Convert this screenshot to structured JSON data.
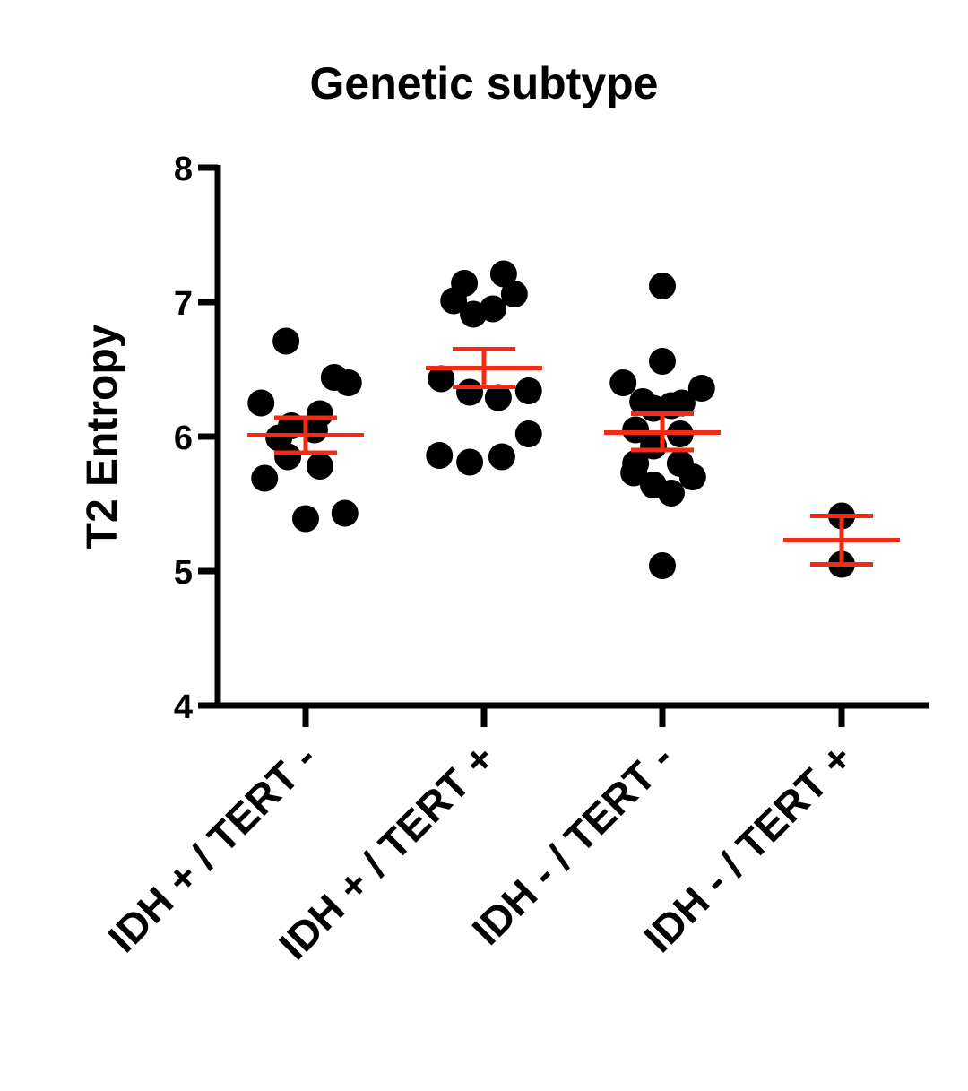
{
  "chart_data": {
    "type": "scatter",
    "title": "Genetic subtype",
    "ylabel": "T2 Entropy",
    "xlabel": "",
    "ylim": [
      4,
      8
    ],
    "yticks": [
      4,
      5,
      6,
      7,
      8
    ],
    "grid": false,
    "legend": "none",
    "colors": {
      "points": "#000000",
      "mean_sem": "#f42a12",
      "axis": "#000000"
    },
    "categories": [
      "IDH + / TERT -",
      "IDH + / TERT +",
      "IDH - / TERT -",
      "IDH - / TERT +"
    ],
    "groups": [
      {
        "category": "IDH + / TERT -",
        "mean": 6.01,
        "sem_low": 5.88,
        "sem_high": 6.14,
        "points": [
          {
            "x": -0.11,
            "y": 6.71
          },
          {
            "x": 0.16,
            "y": 6.44
          },
          {
            "x": 0.24,
            "y": 6.4
          },
          {
            "x": -0.25,
            "y": 6.25
          },
          {
            "x": 0.08,
            "y": 6.17
          },
          {
            "x": -0.08,
            "y": 6.08
          },
          {
            "x": 0.05,
            "y": 6.05
          },
          {
            "x": -0.15,
            "y": 5.99
          },
          {
            "x": -0.1,
            "y": 5.85
          },
          {
            "x": 0.08,
            "y": 5.78
          },
          {
            "x": -0.23,
            "y": 5.69
          },
          {
            "x": 0.22,
            "y": 5.43
          },
          {
            "x": 0.0,
            "y": 5.39
          }
        ]
      },
      {
        "category": "IDH + / TERT +",
        "mean": 6.51,
        "sem_low": 6.37,
        "sem_high": 6.65,
        "points": [
          {
            "x": 0.11,
            "y": 7.21
          },
          {
            "x": -0.11,
            "y": 7.14
          },
          {
            "x": 0.17,
            "y": 7.06
          },
          {
            "x": -0.17,
            "y": 7.01
          },
          {
            "x": 0.05,
            "y": 6.95
          },
          {
            "x": -0.06,
            "y": 6.91
          },
          {
            "x": -0.24,
            "y": 6.43
          },
          {
            "x": 0.25,
            "y": 6.34
          },
          {
            "x": -0.08,
            "y": 6.33
          },
          {
            "x": 0.08,
            "y": 6.29
          },
          {
            "x": 0.25,
            "y": 6.02
          },
          {
            "x": -0.25,
            "y": 5.86
          },
          {
            "x": 0.1,
            "y": 5.85
          },
          {
            "x": -0.08,
            "y": 5.81
          }
        ]
      },
      {
        "category": "IDH - / TERT -",
        "mean": 6.03,
        "sem_low": 5.9,
        "sem_high": 6.17,
        "points": [
          {
            "x": 0.0,
            "y": 7.12
          },
          {
            "x": 0.0,
            "y": 6.56
          },
          {
            "x": -0.22,
            "y": 6.4
          },
          {
            "x": 0.22,
            "y": 6.36
          },
          {
            "x": -0.11,
            "y": 6.26
          },
          {
            "x": -0.05,
            "y": 6.21
          },
          {
            "x": 0.05,
            "y": 6.23
          },
          {
            "x": 0.11,
            "y": 6.25
          },
          {
            "x": -0.15,
            "y": 6.05
          },
          {
            "x": 0.1,
            "y": 6.02
          },
          {
            "x": -0.05,
            "y": 5.93
          },
          {
            "x": -0.15,
            "y": 5.8
          },
          {
            "x": 0.1,
            "y": 5.8
          },
          {
            "x": -0.16,
            "y": 5.73
          },
          {
            "x": 0.17,
            "y": 5.7
          },
          {
            "x": -0.05,
            "y": 5.64
          },
          {
            "x": 0.05,
            "y": 5.58
          },
          {
            "x": 0.0,
            "y": 5.04
          }
        ]
      },
      {
        "category": "IDH - / TERT +",
        "mean": 5.23,
        "sem_low": 5.05,
        "sem_high": 5.41,
        "points": [
          {
            "x": 0.0,
            "y": 5.41
          },
          {
            "x": 0.0,
            "y": 5.05
          }
        ]
      }
    ]
  }
}
